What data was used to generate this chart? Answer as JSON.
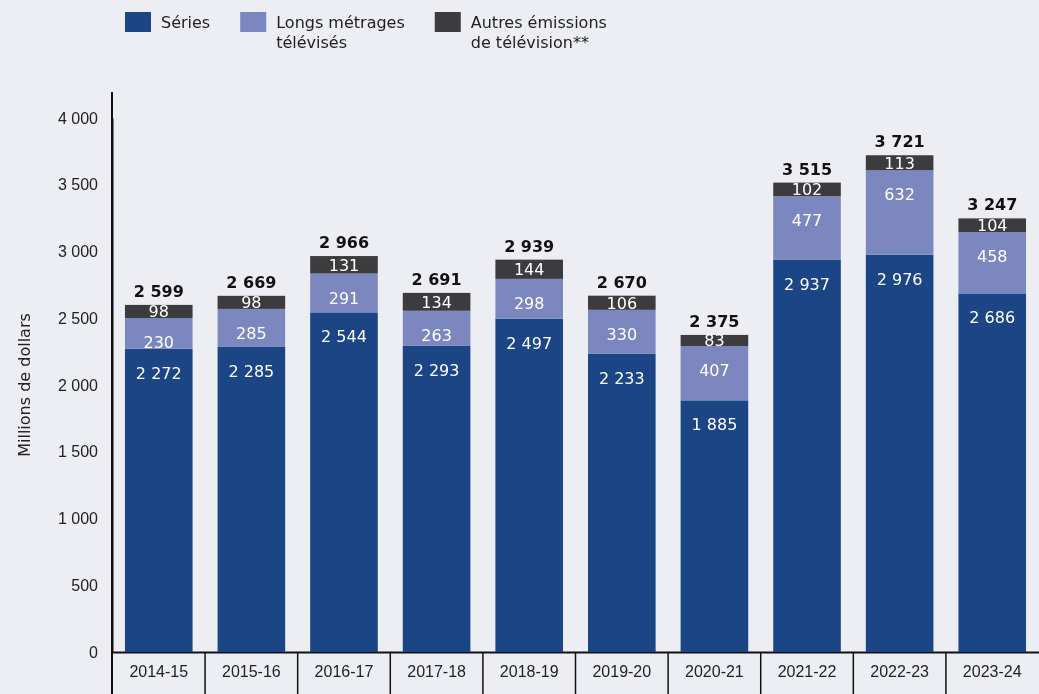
{
  "chart_data": {
    "type": "bar",
    "stacked": true,
    "ylabel": "Millions de dollars",
    "categories": [
      "2014-15",
      "2015-16",
      "2016-17",
      "2017-18",
      "2018-19",
      "2019-20",
      "2020-21",
      "2021-22",
      "2022-23",
      "2023-24"
    ],
    "series": [
      {
        "name": "Séries",
        "color": "#1b4585",
        "values": [
          2272,
          2285,
          2544,
          2293,
          2497,
          2233,
          1885,
          2937,
          2976,
          2686
        ],
        "value_labels": [
          "2 272",
          "2 285",
          "2 544",
          "2 293",
          "2 497",
          "2 233",
          "1 885",
          "2 937",
          "2 976",
          "2 686"
        ]
      },
      {
        "name": "Longs métrages télévisés",
        "color": "#7d87bf",
        "values": [
          230,
          285,
          291,
          263,
          298,
          330,
          407,
          477,
          632,
          458
        ],
        "value_labels": [
          "230",
          "285",
          "291",
          "263",
          "298",
          "330",
          "407",
          "477",
          "632",
          "458"
        ]
      },
      {
        "name": "Autres émissions de télévision**",
        "color": "#3c3c3e",
        "values": [
          98,
          98,
          131,
          134,
          144,
          106,
          83,
          102,
          113,
          104
        ],
        "value_labels": [
          "98",
          "98",
          "131",
          "134",
          "144",
          "106",
          "83",
          "102",
          "113",
          "104"
        ]
      }
    ],
    "totals": [
      "2 599",
      "2 669",
      "2 966",
      "2 691",
      "2 939",
      "2 670",
      "2 375",
      "3 515",
      "3 721",
      "3 247"
    ],
    "ylim": [
      0,
      4000
    ],
    "yticks": [
      {
        "value": 0,
        "label": "0"
      },
      {
        "value": 500,
        "label": "500"
      },
      {
        "value": 1000,
        "label": "1 000"
      },
      {
        "value": 1500,
        "label": "1 500"
      },
      {
        "value": 2000,
        "label": "2 000"
      },
      {
        "value": 2500,
        "label": "2 500"
      },
      {
        "value": 3000,
        "label": "3 000"
      },
      {
        "value": 3500,
        "label": "3 500"
      },
      {
        "value": 4000,
        "label": "4 000"
      }
    ],
    "grid": false,
    "legend": "top left"
  }
}
